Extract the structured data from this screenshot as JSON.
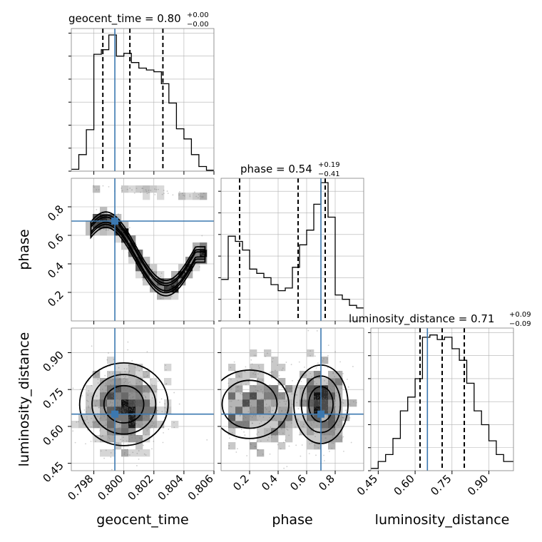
{
  "chart_data": {
    "type": "corner",
    "parameters": [
      "geocent_time",
      "phase",
      "luminosity_distance"
    ],
    "truths": {
      "geocent_time": 0.7994,
      "phase": 0.7,
      "luminosity_distance": 0.65
    },
    "grid": true,
    "colors": {
      "truth": "#3b78b0",
      "hist": "#000000",
      "grid": "#b0b0b0"
    },
    "titles": [
      {
        "param": "geocent_time",
        "text": "geocent_time = 0.80",
        "plus": "+0.00",
        "minus": "−0.00"
      },
      {
        "param": "phase",
        "text": "phase = 0.54",
        "plus": "+0.19",
        "minus": "−0.41"
      },
      {
        "param": "luminosity_distance",
        "text": "luminosity_distance = 0.71",
        "plus": "+0.09",
        "minus": "−0.09"
      }
    ],
    "ranges": {
      "geocent_time": [
        0.7965,
        0.806
      ],
      "phase": [
        0.0,
        1.0
      ],
      "luminosity_distance": [
        0.42,
        1.0
      ]
    },
    "ticks": {
      "geocent_time": {
        "values": [
          0.798,
          0.8,
          0.802,
          0.804,
          0.806
        ],
        "labels": [
          "0.798",
          "0.800",
          "0.802",
          "0.804",
          "0.806"
        ]
      },
      "phase": {
        "values": [
          0.2,
          0.4,
          0.6,
          0.8
        ],
        "labels": [
          "0.2",
          "0.4",
          "0.6",
          "0.8"
        ]
      },
      "luminosity_distance": {
        "values": [
          0.45,
          0.6,
          0.75,
          0.9
        ],
        "labels": [
          "0.45",
          "0.60",
          "0.75",
          "0.90"
        ]
      }
    },
    "histograms": [
      {
        "param": "geocent_time",
        "edges": [
          0.7965,
          0.797,
          0.7975,
          0.798,
          0.7985,
          0.799,
          0.7995,
          0.8,
          0.8005,
          0.801,
          0.8015,
          0.802,
          0.8025,
          0.803,
          0.8035,
          0.804,
          0.8045,
          0.805,
          0.8055,
          0.806
        ],
        "counts": [
          2,
          18,
          45,
          127,
          132,
          148,
          125,
          128,
          118,
          112,
          110,
          108,
          95,
          74,
          46,
          35,
          18,
          5,
          1
        ],
        "ymax": 155,
        "quantiles": [
          0.7986,
          0.8004,
          0.8026
        ],
        "yticks": [
          0,
          25,
          50,
          75,
          100,
          125,
          150
        ]
      },
      {
        "param": "phase",
        "edges": [
          0.0,
          0.05,
          0.1,
          0.15,
          0.2,
          0.25,
          0.3,
          0.35,
          0.4,
          0.45,
          0.5,
          0.55,
          0.6,
          0.65,
          0.7,
          0.75,
          0.8,
          0.85,
          0.9,
          0.95,
          1.0
        ],
        "counts": [
          48,
          98,
          92,
          82,
          60,
          55,
          50,
          42,
          35,
          38,
          62,
          88,
          105,
          135,
          160,
          120,
          30,
          25,
          18,
          15
        ],
        "ymax": 165,
        "quantiles": [
          0.13,
          0.54,
          0.73
        ],
        "yticks": [
          0,
          25,
          50,
          75,
          100,
          125,
          150
        ]
      },
      {
        "param": "luminosity_distance",
        "edges": [
          0.42,
          0.45,
          0.48,
          0.51,
          0.54,
          0.57,
          0.6,
          0.63,
          0.66,
          0.69,
          0.72,
          0.75,
          0.78,
          0.81,
          0.84,
          0.87,
          0.9,
          0.93,
          0.96,
          1.0
        ],
        "counts": [
          1,
          4,
          7,
          14,
          26,
          32,
          40,
          58,
          59,
          57,
          58,
          53,
          48,
          38,
          26,
          20,
          13,
          7,
          4
        ],
        "ymax": 62,
        "quantiles": [
          0.62,
          0.71,
          0.8
        ],
        "yticks": [
          0,
          10,
          20,
          30,
          40,
          50,
          60
        ]
      }
    ],
    "scatter_samples": [
      {
        "x": "geocent_time",
        "y": "phase",
        "count": 600,
        "seed": 7
      },
      {
        "x": "geocent_time",
        "y": "luminosity_distance",
        "count": 700,
        "seed": 11
      },
      {
        "x": "phase",
        "y": "luminosity_distance",
        "count": 700,
        "seed": 13
      }
    ]
  }
}
